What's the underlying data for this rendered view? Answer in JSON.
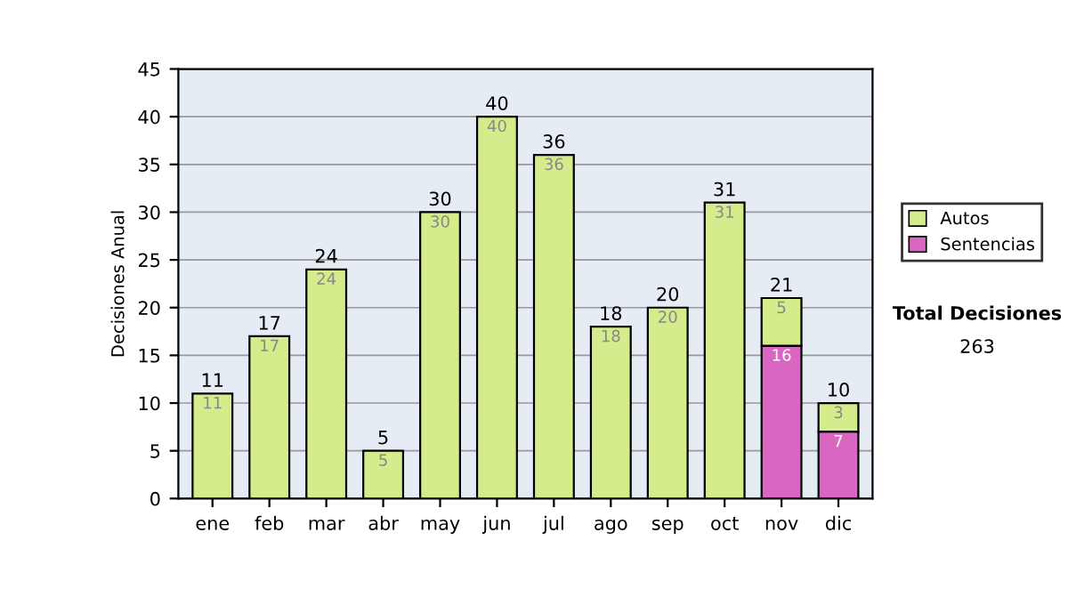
{
  "chart_data": {
    "type": "bar",
    "stacked": true,
    "ylabel": "Decisiones Anual",
    "categories": [
      "ene",
      "feb",
      "mar",
      "abr",
      "may",
      "jun",
      "jul",
      "ago",
      "sep",
      "oct",
      "nov",
      "dic"
    ],
    "series": [
      {
        "name": "Sentencias",
        "color": "#d966c0",
        "values": [
          0,
          0,
          0,
          0,
          0,
          0,
          0,
          0,
          0,
          0,
          16,
          7
        ],
        "value_labels": [
          null,
          null,
          null,
          null,
          null,
          null,
          null,
          null,
          null,
          null,
          "16",
          "7"
        ]
      },
      {
        "name": "Autos",
        "color": "#d4ec8c",
        "values": [
          11,
          17,
          24,
          5,
          30,
          40,
          36,
          18,
          20,
          31,
          5,
          3
        ],
        "value_labels": [
          "11",
          "17",
          "24",
          "5",
          "30",
          "40",
          "36",
          "18",
          "20",
          "31",
          "5",
          "3"
        ]
      }
    ],
    "totals": [
      "11",
      "17",
      "24",
      "5",
      "30",
      "40",
      "36",
      "18",
      "20",
      "31",
      "21",
      "10"
    ],
    "ylim": [
      0,
      45
    ],
    "yticks": [
      0,
      5,
      10,
      15,
      20,
      25,
      30,
      35,
      40,
      45
    ],
    "grid": "y",
    "legend": "right",
    "annotations": [
      "Total Decisiones",
      "263"
    ]
  }
}
